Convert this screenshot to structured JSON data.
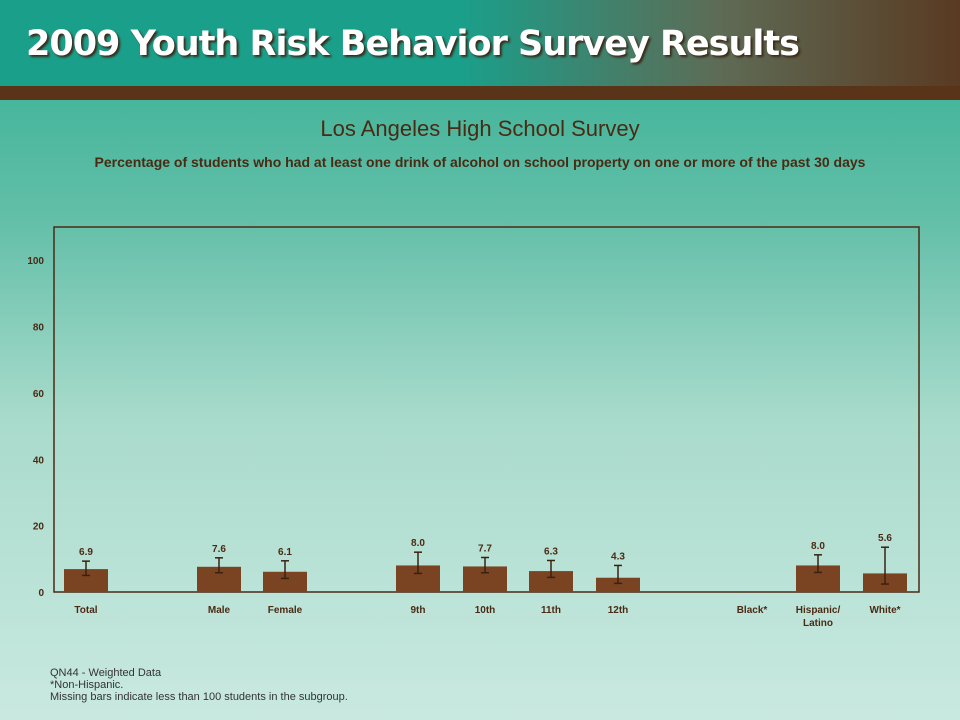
{
  "banner": {
    "title": "2009 Youth Risk Behavior Survey Results"
  },
  "colors": {
    "bar": "#7a4321",
    "error_bar": "#3a2210",
    "plot_border": "#4b2a14",
    "text": "#4b2a14"
  },
  "chart_data": {
    "type": "bar",
    "title": "Los Angeles High School Survey",
    "subtitle": "Percentage of students who had at least one drink of alcohol on school property on one or more of the past 30 days",
    "ylim": [
      0,
      110
    ],
    "yticks": [
      0,
      20,
      40,
      60,
      80,
      100
    ],
    "grid": false,
    "categories": [
      "Total",
      "Male",
      "Female",
      "9th",
      "10th",
      "11th",
      "12th",
      "Black*",
      "Hispanic/ Latino",
      "White*"
    ],
    "values": [
      6.9,
      7.6,
      6.1,
      8.0,
      7.7,
      6.3,
      4.3,
      null,
      8.0,
      5.6
    ],
    "value_labels": [
      "6.9",
      "7.6",
      "6.1",
      "8.0",
      "7.7",
      "6.3",
      "4.3",
      "",
      "8.0",
      "5.6"
    ],
    "error_low": [
      5.0,
      5.8,
      4.1,
      5.6,
      5.8,
      4.4,
      2.6,
      null,
      5.9,
      2.4
    ],
    "error_high": [
      9.3,
      10.3,
      9.4,
      12.0,
      10.4,
      9.5,
      8.0,
      null,
      11.2,
      13.5
    ]
  },
  "footer": {
    "line1": "QN44 - Weighted Data",
    "line2": "*Non-Hispanic.",
    "line3": "Missing bars indicate less than 100 students in the subgroup."
  }
}
